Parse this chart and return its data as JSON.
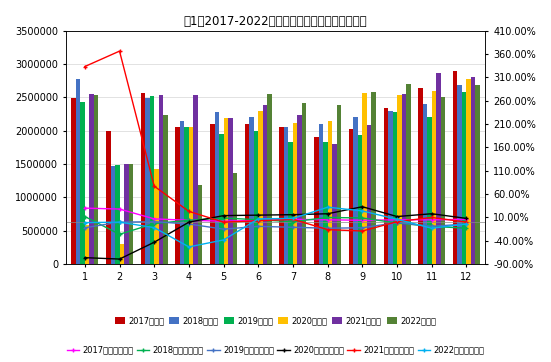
{
  "title": "图1：2017-2022年月度汽车销量及同比变化情况",
  "months": [
    1,
    2,
    3,
    4,
    5,
    6,
    7,
    8,
    9,
    10,
    11,
    12
  ],
  "yticks_left": [
    0,
    500000,
    1000000,
    1500000,
    2000000,
    2500000,
    3000000,
    3500000
  ],
  "yticks_left_labels": [
    "0",
    "500000",
    "1000000",
    "1500000",
    "2000000",
    "2500000",
    "3000000",
    "3500000"
  ],
  "yticks_right_labels": [
    "-90.00%",
    "-40.00%",
    "10.00%",
    "60.00%",
    "110.00%",
    "160.00%",
    "210.00%",
    "260.00%",
    "310.00%",
    "360.00%",
    "410.00%"
  ],
  "yticks_right_vals": [
    -0.9,
    -0.4,
    0.1,
    0.6,
    1.1,
    1.6,
    2.1,
    2.6,
    3.1,
    3.6,
    4.1
  ],
  "sales_2017": [
    2490000,
    1990000,
    2560000,
    2050000,
    2100000,
    2100000,
    2050000,
    1900000,
    2020000,
    2340000,
    2640000,
    2890000
  ],
  "sales_2018": [
    2780000,
    1470000,
    2490000,
    2140000,
    2280000,
    2200000,
    2060000,
    2100000,
    2200000,
    2300000,
    2400000,
    2680000
  ],
  "sales_2019": [
    2430000,
    1480000,
    2520000,
    2060000,
    1950000,
    2000000,
    1830000,
    1830000,
    1940000,
    2280000,
    2200000,
    2580000
  ],
  "sales_2020": [
    590000,
    310000,
    1430000,
    2060000,
    2190000,
    2300000,
    2110000,
    2150000,
    2570000,
    2540000,
    2600000,
    2780000
  ],
  "sales_2021": [
    2550000,
    1500000,
    2530000,
    2530000,
    2190000,
    2380000,
    2240000,
    1800000,
    2080000,
    2550000,
    2870000,
    2800000
  ],
  "sales_2022": [
    2530000,
    1500000,
    2230000,
    1180000,
    1360000,
    2550000,
    2420000,
    2380000,
    2580000,
    2700000,
    2500000,
    2680000
  ],
  "yoy_2017": [
    0.3,
    0.28,
    0.07,
    0.04,
    0.02,
    0.04,
    0.06,
    0.05,
    0.04,
    0.05,
    0.05,
    0.06
  ],
  "yoy_2018": [
    0.12,
    -0.26,
    -0.03,
    0.04,
    0.09,
    0.05,
    0.01,
    0.1,
    0.09,
    -0.02,
    -0.09,
    -0.13
  ],
  "yoy_2019": [
    -0.12,
    0.0,
    0.01,
    -0.04,
    -0.15,
    -0.09,
    -0.11,
    -0.13,
    -0.12,
    -0.01,
    -0.09,
    -0.04
  ],
  "yoy_2020": [
    -0.76,
    -0.79,
    -0.43,
    0.0,
    0.14,
    0.15,
    0.16,
    0.18,
    0.33,
    0.12,
    0.18,
    0.08
  ],
  "yoy_2021": [
    3.33,
    3.66,
    0.77,
    0.23,
    0.0,
    0.03,
    0.06,
    -0.16,
    -0.19,
    0.01,
    0.1,
    0.0
  ],
  "yoy_2022": [
    -0.01,
    0.0,
    -0.117,
    -0.53,
    -0.38,
    0.07,
    0.08,
    0.32,
    0.24,
    0.06,
    -0.13,
    -0.04
  ],
  "bar_colors": [
    "#c00000",
    "#4472c4",
    "#00b050",
    "#ffc000",
    "#7030a0",
    "#548235"
  ],
  "line_colors": [
    "#ff00ff",
    "#00b050",
    "#4472c4",
    "#000000",
    "#ff0000",
    "#00b0f0"
  ],
  "legend_bar_labels": [
    "2017年销量",
    "2018年销量",
    "2019年销量",
    "2020年销量",
    "2021年销量",
    "2022年销量"
  ],
  "legend_line_labels": [
    "2017年同比增长率",
    "2018年同比增长率",
    "2019年同比增长率",
    "2020年同比增长率",
    "2021年同比增长率",
    "2022年同比增长率"
  ]
}
